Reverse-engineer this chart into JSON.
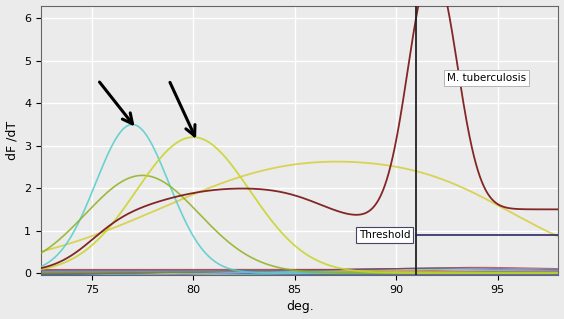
{
  "xlabel": "deg.",
  "ylabel": "dF /dT",
  "xlim": [
    72.5,
    98
  ],
  "ylim": [
    -0.05,
    6.3
  ],
  "yticks": [
    0,
    1,
    2,
    3,
    4,
    5,
    6
  ],
  "xticks": [
    75,
    80,
    85,
    90,
    95
  ],
  "threshold_x": 91.0,
  "threshold_y": 0.9,
  "threshold_label": "Threshold",
  "tb_label": "M. tuberculosis",
  "bg_color": "#ebebeb",
  "grid_color": "#ffffff",
  "vline_color": "#222222",
  "threshold_line_color": "#1a1a5e",
  "dark_red_color": "#7a1515",
  "cyan_color": "#55cccc",
  "yg1_color": "#90b020",
  "yg2_color": "#c8d428",
  "yellow_color": "#d4cc30"
}
